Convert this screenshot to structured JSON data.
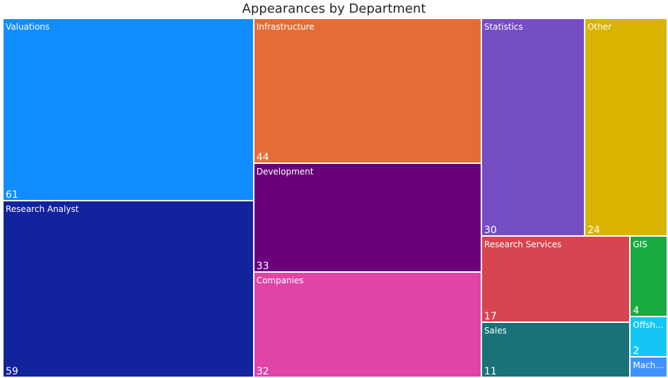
{
  "chart_data": {
    "type": "treemap",
    "title": "Appearances by Department",
    "items": [
      {
        "name": "Valuations",
        "value": 61,
        "color": "#118DFF"
      },
      {
        "name": "Research Analyst",
        "value": 59,
        "color": "#12239E"
      },
      {
        "name": "Infrastructure",
        "value": 44,
        "color": "#E66C37"
      },
      {
        "name": "Development",
        "value": 33,
        "color": "#6B007B"
      },
      {
        "name": "Companies",
        "value": 32,
        "color": "#E044A7"
      },
      {
        "name": "Statistics",
        "value": 30,
        "color": "#744EC2"
      },
      {
        "name": "Other",
        "value": 24,
        "color": "#D9B300"
      },
      {
        "name": "Research Services",
        "value": 17,
        "color": "#D64550"
      },
      {
        "name": "Sales",
        "value": 11,
        "color": "#197278"
      },
      {
        "name": "GIS",
        "value": 4,
        "color": "#1AAB40"
      },
      {
        "name": "Offsh...",
        "value": 2,
        "color": "#15C6F4"
      },
      {
        "name": "Machi...",
        "value": 1,
        "color": "#4092FF"
      }
    ]
  }
}
